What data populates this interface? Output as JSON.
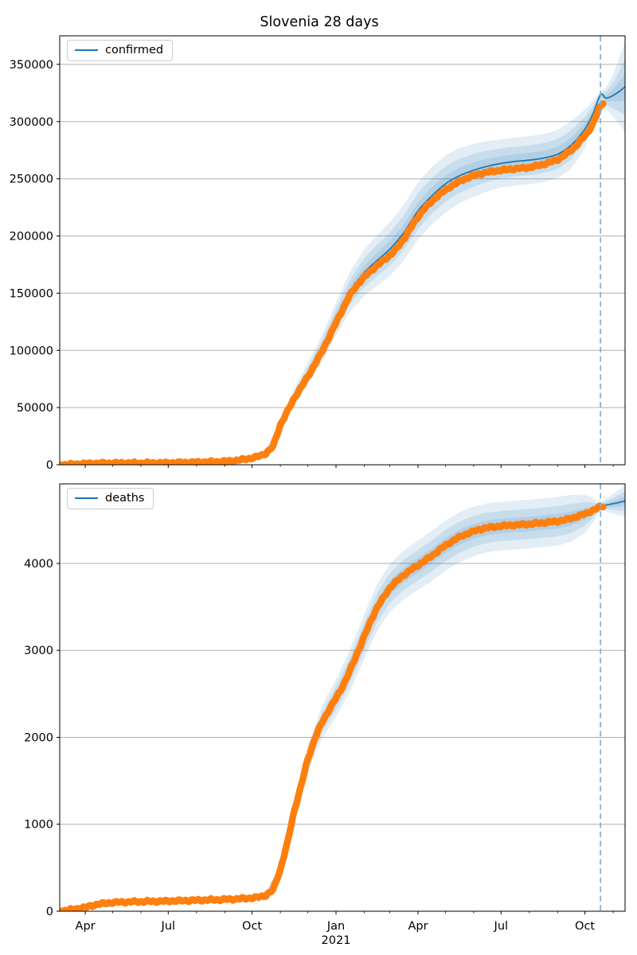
{
  "figure": {
    "title": "Slovenia 28 days"
  },
  "colors": {
    "actual": "#ff7f0e",
    "forecast": "#1f77b4",
    "band": "#1f77b4",
    "grid": "#b0b0b0",
    "axis": "#000000",
    "text": "#000000",
    "dashed_line": "#7cb0da",
    "background": "#ffffff"
  },
  "x_axis": {
    "tick_labels": [
      "Apr",
      "Jul",
      "Oct",
      "Jan",
      "Apr",
      "Jul",
      "Oct"
    ],
    "tick_days": [
      28,
      119,
      211,
      303,
      393,
      484,
      576
    ],
    "minor_tick_days": [
      58,
      89,
      150,
      181,
      242,
      272,
      334,
      362,
      423,
      454,
      515,
      546,
      607
    ],
    "year_label": "2021",
    "year_day": 303,
    "domain_days": [
      0,
      620
    ],
    "domain_dates": [
      "2020-03-04",
      "2021-11-14"
    ],
    "forecast_start_day": 593
  },
  "chart_data": [
    {
      "type": "line",
      "legend": "confirmed",
      "legend_loc": "upper left",
      "ylim": [
        0,
        375000
      ],
      "yticks": [
        0,
        50000,
        100000,
        150000,
        200000,
        250000,
        300000,
        350000
      ],
      "grid": "horizontal",
      "actual_points": [
        [
          0,
          50
        ],
        [
          10,
          250
        ],
        [
          20,
          700
        ],
        [
          28,
          1000
        ],
        [
          43,
          1330
        ],
        [
          58,
          1450
        ],
        [
          74,
          1480
        ],
        [
          89,
          1510
        ],
        [
          104,
          1560
        ],
        [
          119,
          1680
        ],
        [
          135,
          1900
        ],
        [
          150,
          2150
        ],
        [
          165,
          2500
        ],
        [
          181,
          2900
        ],
        [
          196,
          4000
        ],
        [
          211,
          5900
        ],
        [
          219,
          7600
        ],
        [
          226,
          9900
        ],
        [
          234,
          16000
        ],
        [
          242,
          35000
        ],
        [
          250,
          47000
        ],
        [
          257,
          58000
        ],
        [
          265,
          68000
        ],
        [
          272,
          77000
        ],
        [
          280,
          88000
        ],
        [
          287,
          98000
        ],
        [
          295,
          111000
        ],
        [
          303,
          124000
        ],
        [
          311,
          137000
        ],
        [
          318,
          148000
        ],
        [
          326,
          157000
        ],
        [
          334,
          164000
        ],
        [
          341,
          169500
        ],
        [
          348,
          174000
        ],
        [
          355,
          178500
        ],
        [
          362,
          183000
        ],
        [
          370,
          189500
        ],
        [
          377,
          197000
        ],
        [
          385,
          207000
        ],
        [
          393,
          217000
        ],
        [
          400,
          224000
        ],
        [
          408,
          230000
        ],
        [
          415,
          235500
        ],
        [
          423,
          240000
        ],
        [
          430,
          244000
        ],
        [
          438,
          247500
        ],
        [
          446,
          250500
        ],
        [
          454,
          252800
        ],
        [
          461,
          254300
        ],
        [
          469,
          255800
        ],
        [
          477,
          256800
        ],
        [
          484,
          257500
        ],
        [
          492,
          258200
        ],
        [
          500,
          258800
        ],
        [
          507,
          259300
        ],
        [
          515,
          260000
        ],
        [
          523,
          261200
        ],
        [
          530,
          262700
        ],
        [
          538,
          264400
        ],
        [
          546,
          266800
        ],
        [
          553,
          270200
        ],
        [
          561,
          275000
        ],
        [
          568,
          280500
        ],
        [
          576,
          287500
        ],
        [
          581,
          293000
        ],
        [
          585,
          299000
        ],
        [
          589,
          306000
        ],
        [
          593,
          313500
        ],
        [
          596,
          316500
        ]
      ],
      "forecast_points": [
        [
          0,
          50
        ],
        [
          28,
          1000
        ],
        [
          58,
          1450
        ],
        [
          89,
          1510
        ],
        [
          119,
          1680
        ],
        [
          150,
          2150
        ],
        [
          181,
          2900
        ],
        [
          211,
          5900
        ],
        [
          226,
          9900
        ],
        [
          242,
          35000
        ],
        [
          257,
          59000
        ],
        [
          272,
          79500
        ],
        [
          287,
          100500
        ],
        [
          303,
          127500
        ],
        [
          318,
          151000
        ],
        [
          334,
          168000
        ],
        [
          348,
          178500
        ],
        [
          362,
          188500
        ],
        [
          377,
          202500
        ],
        [
          393,
          222000
        ],
        [
          408,
          235000
        ],
        [
          423,
          245500
        ],
        [
          438,
          252500
        ],
        [
          454,
          257500
        ],
        [
          469,
          261000
        ],
        [
          484,
          263500
        ],
        [
          500,
          265200
        ],
        [
          515,
          266300
        ],
        [
          530,
          268000
        ],
        [
          546,
          271500
        ],
        [
          561,
          279500
        ],
        [
          576,
          293500
        ],
        [
          585,
          307000
        ],
        [
          593,
          323500
        ],
        [
          599,
          320500
        ],
        [
          606,
          322500
        ],
        [
          613,
          326000
        ],
        [
          620,
          330500
        ]
      ],
      "band_halfwidth": [
        [
          0,
          700
        ],
        [
          100,
          900
        ],
        [
          200,
          1500
        ],
        [
          226,
          2600
        ],
        [
          242,
          5000
        ],
        [
          257,
          7200
        ],
        [
          272,
          9500
        ],
        [
          287,
          11500
        ],
        [
          303,
          14500
        ],
        [
          318,
          17500
        ],
        [
          334,
          20500
        ],
        [
          362,
          23500
        ],
        [
          393,
          25000
        ],
        [
          423,
          25000
        ],
        [
          454,
          23000
        ],
        [
          484,
          21000
        ],
        [
          515,
          21000
        ],
        [
          546,
          21000
        ],
        [
          561,
          21000
        ],
        [
          576,
          17000
        ],
        [
          585,
          11000
        ],
        [
          593,
          3000
        ],
        [
          600,
          10000
        ],
        [
          608,
          20000
        ],
        [
          614,
          29000
        ],
        [
          620,
          40000
        ]
      ],
      "band_levels": [
        1.0,
        0.62,
        0.3
      ]
    },
    {
      "type": "line",
      "legend": "deaths",
      "legend_loc": "upper left",
      "ylim": [
        0,
        4915
      ],
      "yticks": [
        0,
        1000,
        2000,
        3000,
        4000
      ],
      "grid": "horizontal",
      "actual_points": [
        [
          0,
          2
        ],
        [
          14,
          20
        ],
        [
          28,
          45
        ],
        [
          43,
          83
        ],
        [
          58,
          100
        ],
        [
          74,
          107
        ],
        [
          89,
          111
        ],
        [
          104,
          114
        ],
        [
          119,
          117
        ],
        [
          135,
          122
        ],
        [
          150,
          126
        ],
        [
          165,
          131
        ],
        [
          181,
          135
        ],
        [
          196,
          142
        ],
        [
          211,
          152
        ],
        [
          219,
          163
        ],
        [
          226,
          182
        ],
        [
          234,
          245
        ],
        [
          242,
          480
        ],
        [
          250,
          800
        ],
        [
          257,
          1150
        ],
        [
          265,
          1450
        ],
        [
          272,
          1750
        ],
        [
          280,
          1990
        ],
        [
          287,
          2160
        ],
        [
          295,
          2310
        ],
        [
          303,
          2450
        ],
        [
          311,
          2600
        ],
        [
          318,
          2760
        ],
        [
          326,
          2960
        ],
        [
          334,
          3160
        ],
        [
          341,
          3340
        ],
        [
          348,
          3490
        ],
        [
          355,
          3610
        ],
        [
          362,
          3720
        ],
        [
          370,
          3800
        ],
        [
          377,
          3865
        ],
        [
          385,
          3925
        ],
        [
          393,
          3980
        ],
        [
          400,
          4030
        ],
        [
          408,
          4085
        ],
        [
          415,
          4145
        ],
        [
          423,
          4205
        ],
        [
          430,
          4255
        ],
        [
          438,
          4300
        ],
        [
          446,
          4340
        ],
        [
          454,
          4370
        ],
        [
          461,
          4393
        ],
        [
          469,
          4410
        ],
        [
          477,
          4422
        ],
        [
          484,
          4430
        ],
        [
          492,
          4437
        ],
        [
          500,
          4442
        ],
        [
          507,
          4447
        ],
        [
          515,
          4453
        ],
        [
          523,
          4461
        ],
        [
          530,
          4469
        ],
        [
          538,
          4476
        ],
        [
          546,
          4484
        ],
        [
          553,
          4499
        ],
        [
          561,
          4518
        ],
        [
          568,
          4541
        ],
        [
          576,
          4570
        ],
        [
          585,
          4612
        ],
        [
          593,
          4652
        ],
        [
          596,
          4660
        ]
      ],
      "forecast_points": [
        [
          0,
          2
        ],
        [
          28,
          45
        ],
        [
          58,
          100
        ],
        [
          89,
          111
        ],
        [
          119,
          117
        ],
        [
          150,
          126
        ],
        [
          181,
          135
        ],
        [
          211,
          152
        ],
        [
          226,
          182
        ],
        [
          242,
          480
        ],
        [
          257,
          1150
        ],
        [
          272,
          1750
        ],
        [
          287,
          2160
        ],
        [
          303,
          2450
        ],
        [
          318,
          2760
        ],
        [
          334,
          3160
        ],
        [
          348,
          3490
        ],
        [
          362,
          3720
        ],
        [
          377,
          3865
        ],
        [
          393,
          3980
        ],
        [
          408,
          4085
        ],
        [
          423,
          4205
        ],
        [
          438,
          4300
        ],
        [
          454,
          4370
        ],
        [
          469,
          4410
        ],
        [
          484,
          4430
        ],
        [
          500,
          4442
        ],
        [
          515,
          4453
        ],
        [
          530,
          4469
        ],
        [
          546,
          4484
        ],
        [
          561,
          4518
        ],
        [
          576,
          4570
        ],
        [
          585,
          4612
        ],
        [
          593,
          4655
        ],
        [
          600,
          4672
        ],
        [
          610,
          4693
        ],
        [
          620,
          4718
        ]
      ],
      "band_halfwidth": [
        [
          0,
          8
        ],
        [
          200,
          25
        ],
        [
          226,
          40
        ],
        [
          242,
          70
        ],
        [
          257,
          110
        ],
        [
          272,
          150
        ],
        [
          287,
          185
        ],
        [
          303,
          215
        ],
        [
          318,
          240
        ],
        [
          334,
          260
        ],
        [
          362,
          275
        ],
        [
          393,
          285
        ],
        [
          423,
          290
        ],
        [
          454,
          285
        ],
        [
          484,
          280
        ],
        [
          515,
          280
        ],
        [
          546,
          280
        ],
        [
          561,
          270
        ],
        [
          576,
          220
        ],
        [
          585,
          140
        ],
        [
          593,
          40
        ],
        [
          600,
          80
        ],
        [
          608,
          120
        ],
        [
          614,
          150
        ],
        [
          620,
          185
        ]
      ],
      "band_levels": [
        1.0,
        0.62,
        0.3
      ]
    }
  ]
}
